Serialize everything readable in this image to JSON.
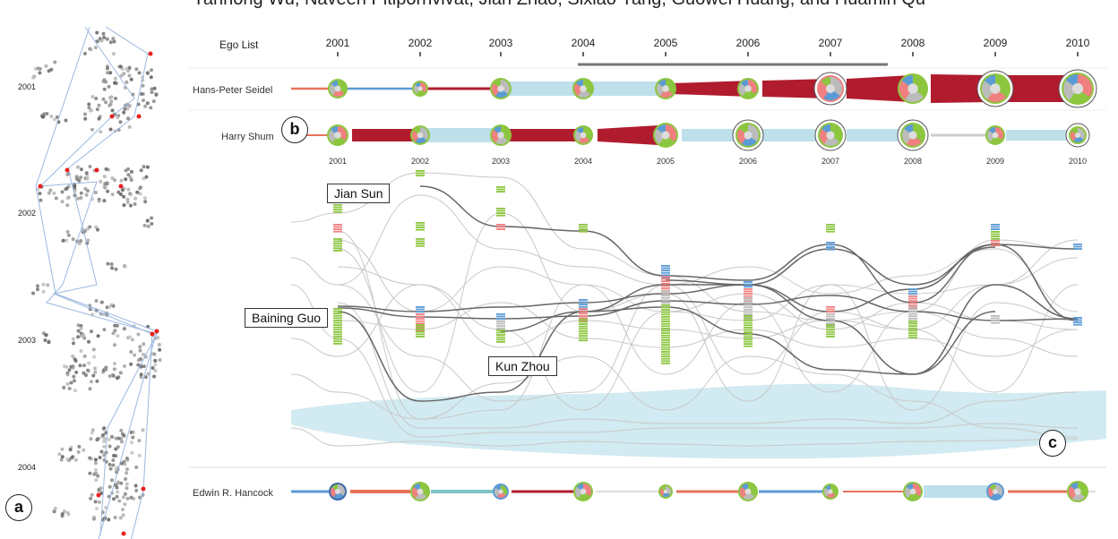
{
  "authors_line": "Yanhong Wu, Naveen Pitipornvivat, Jian Zhao, Sixiao Yang, Guowei Huang, and Huamin Qu",
  "ego_list_label": "Ego List",
  "years": [
    "2001",
    "2002",
    "2003",
    "2004",
    "2005",
    "2006",
    "2007",
    "2008",
    "2009",
    "2010"
  ],
  "rows": [
    {
      "name": "Hans-Peter Seidel",
      "show_sub_years": false
    },
    {
      "name": "Harry Shum",
      "show_sub_years": true
    },
    {
      "name": "Edwin R. Hancock",
      "show_sub_years": false
    }
  ],
  "panel_a_years": [
    "2001",
    "2002",
    "2003",
    "2004"
  ],
  "callouts": {
    "jian_sun": "Jian Sun",
    "baining_guo": "Baining Guo",
    "kun_zhou": "Kun Zhou"
  },
  "panel_labels": {
    "a": "a",
    "b": "b",
    "c": "c"
  },
  "colors": {
    "dark_red": "#b01c2e",
    "light_blue": "#add8e6",
    "salmon": "#e8735a",
    "mid_blue": "#5b9bd5",
    "green": "#8cc63f",
    "pink": "#f08080",
    "gray": "#bbbbbb"
  }
}
